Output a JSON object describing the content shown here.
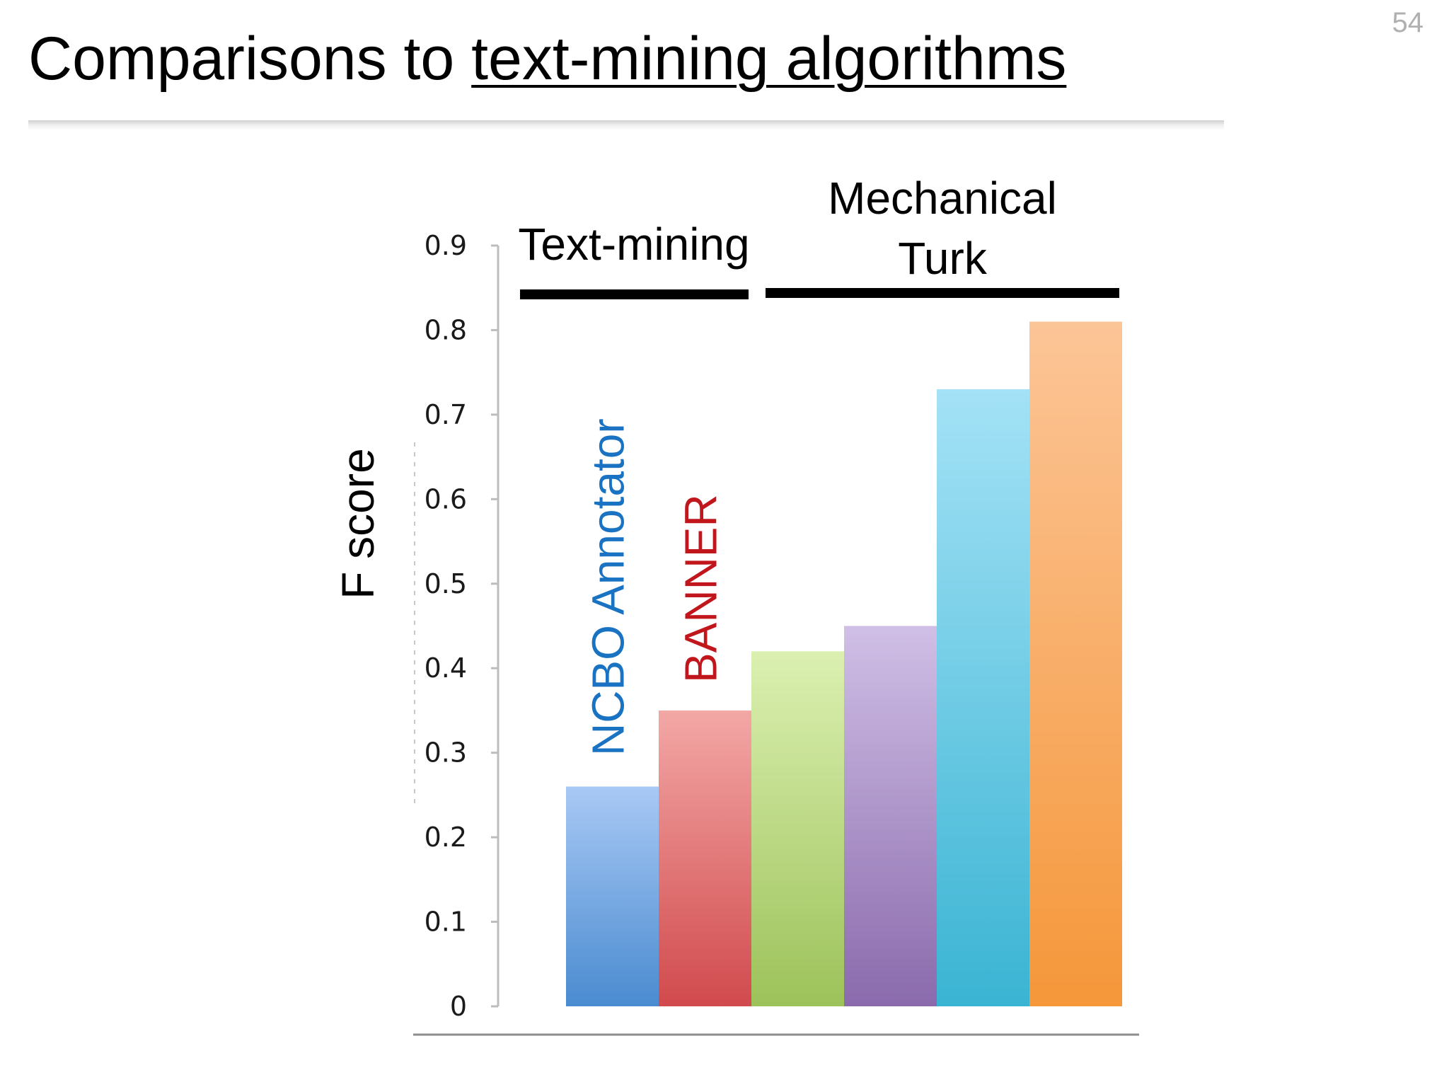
{
  "slide": {
    "number": "54",
    "title_prefix": "Comparisons to ",
    "title_link": "text-mining algorithms"
  },
  "chart_data": {
    "type": "bar",
    "ylabel": "F score",
    "ylim": [
      0,
      0.9
    ],
    "yticks": [
      "0",
      "0.1",
      "0.2",
      "0.3",
      "0.4",
      "0.5",
      "0.6",
      "0.7",
      "0.8",
      "0.9"
    ],
    "grid": false,
    "legend": "none",
    "values": [
      0.26,
      0.35,
      0.42,
      0.45,
      0.73,
      0.81
    ],
    "bar_labels": [
      "NCBO Annotator",
      "BANNER",
      "",
      "",
      "",
      ""
    ],
    "bar_label_colors": [
      "#1a73c2",
      "#c0161c",
      "",
      "",
      "",
      ""
    ],
    "bar_colors": [
      [
        "#4a8bd0",
        "#a9c9f5"
      ],
      [
        "#d14a4d",
        "#f3a8a6"
      ],
      [
        "#9dc25a",
        "#dbf0b1"
      ],
      [
        "#8a6aac",
        "#d0bfe6"
      ],
      [
        "#3ab4d3",
        "#a4e2f6"
      ],
      [
        "#f5973a",
        "#fcc597"
      ]
    ],
    "groups": [
      {
        "label": [
          "Text-mining"
        ],
        "bars": [
          0,
          1
        ]
      },
      {
        "label": [
          "Mechanical",
          "Turk"
        ],
        "bars": [
          2,
          3,
          4,
          5
        ]
      }
    ]
  }
}
